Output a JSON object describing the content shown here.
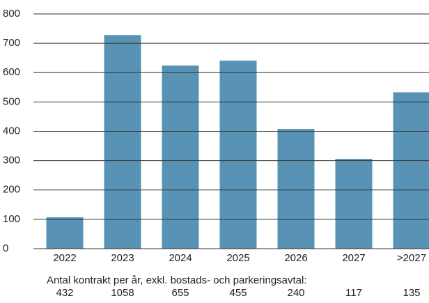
{
  "chart_data": {
    "type": "bar",
    "categories": [
      "2022",
      "2023",
      "2024",
      "2025",
      "2026",
      "2027",
      ">2027"
    ],
    "values": [
      107,
      728,
      624,
      641,
      408,
      306,
      533
    ],
    "color": "#5893b6",
    "ylim": [
      0,
      800
    ],
    "yticks": [
      0,
      100,
      200,
      300,
      400,
      500,
      600,
      700,
      800
    ],
    "grid": true,
    "footnote": "Antal kontrakt per år, exkl. bostads- och parkeringsavtal:",
    "contract_counts": [
      432,
      1058,
      655,
      455,
      240,
      117,
      135
    ]
  }
}
